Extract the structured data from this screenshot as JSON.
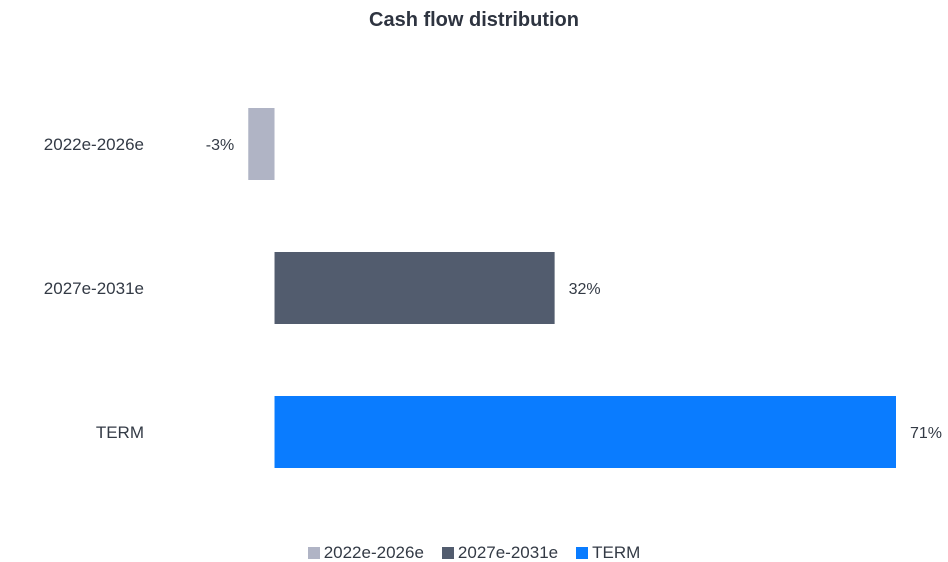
{
  "chart_data": {
    "type": "bar",
    "orientation": "horizontal",
    "title": "Cash flow distribution",
    "categories": [
      "2022e-2026e",
      "2027e-2031e",
      "TERM"
    ],
    "values": [
      -3,
      32,
      71
    ],
    "value_labels": [
      "-3%",
      "32%",
      "71%"
    ],
    "unit": "%",
    "colors": [
      "#b0b4c5",
      "#525c6e",
      "#0a7cff"
    ],
    "xlim": [
      -6,
      71
    ],
    "grid": false,
    "xaxis_visible": false,
    "legend": {
      "position": "bottom",
      "entries": [
        {
          "label": "2022e-2026e",
          "color": "#b0b4c5"
        },
        {
          "label": "2027e-2031e",
          "color": "#525c6e"
        },
        {
          "label": "TERM",
          "color": "#0a7cff"
        }
      ]
    }
  }
}
